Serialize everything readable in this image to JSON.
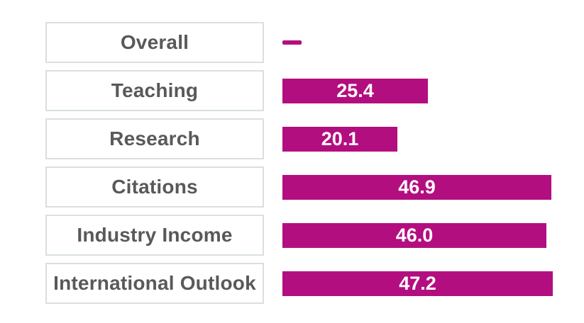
{
  "chart": {
    "rows": [
      {
        "label": "Overall",
        "value": null,
        "display": "—"
      },
      {
        "label": "Teaching",
        "value": 25.4,
        "display": "25.4"
      },
      {
        "label": "Research",
        "value": 20.1,
        "display": "20.1"
      },
      {
        "label": "Citations",
        "value": 46.9,
        "display": "46.9"
      },
      {
        "label": "Industry Income",
        "value": 46.0,
        "display": "46.0"
      },
      {
        "label": "International Outlook",
        "value": 47.2,
        "display": "47.2"
      }
    ]
  },
  "chart_data": {
    "type": "bar",
    "orientation": "horizontal",
    "title": "",
    "categories": [
      "Overall",
      "Teaching",
      "Research",
      "Citations",
      "Industry Income",
      "International Outlook"
    ],
    "values": [
      null,
      25.4,
      20.1,
      46.9,
      46.0,
      47.2
    ],
    "value_labels": [
      "—",
      "25.4",
      "20.1",
      "46.9",
      "46.0",
      "47.2"
    ],
    "xlabel": "",
    "ylabel": "",
    "xlim": [
      0,
      50
    ],
    "grid": false,
    "legend": false,
    "notes": "Overall score shown as a dash (no value); data labels rendered in white centered inside bars; category labels shown inside outlined boxes left of bars"
  },
  "colors": {
    "bar": "#b30e80",
    "label_text": "#58595b",
    "box_border": "#d9dfe2",
    "value_text": "#ffffff",
    "background": "#ffffff"
  }
}
